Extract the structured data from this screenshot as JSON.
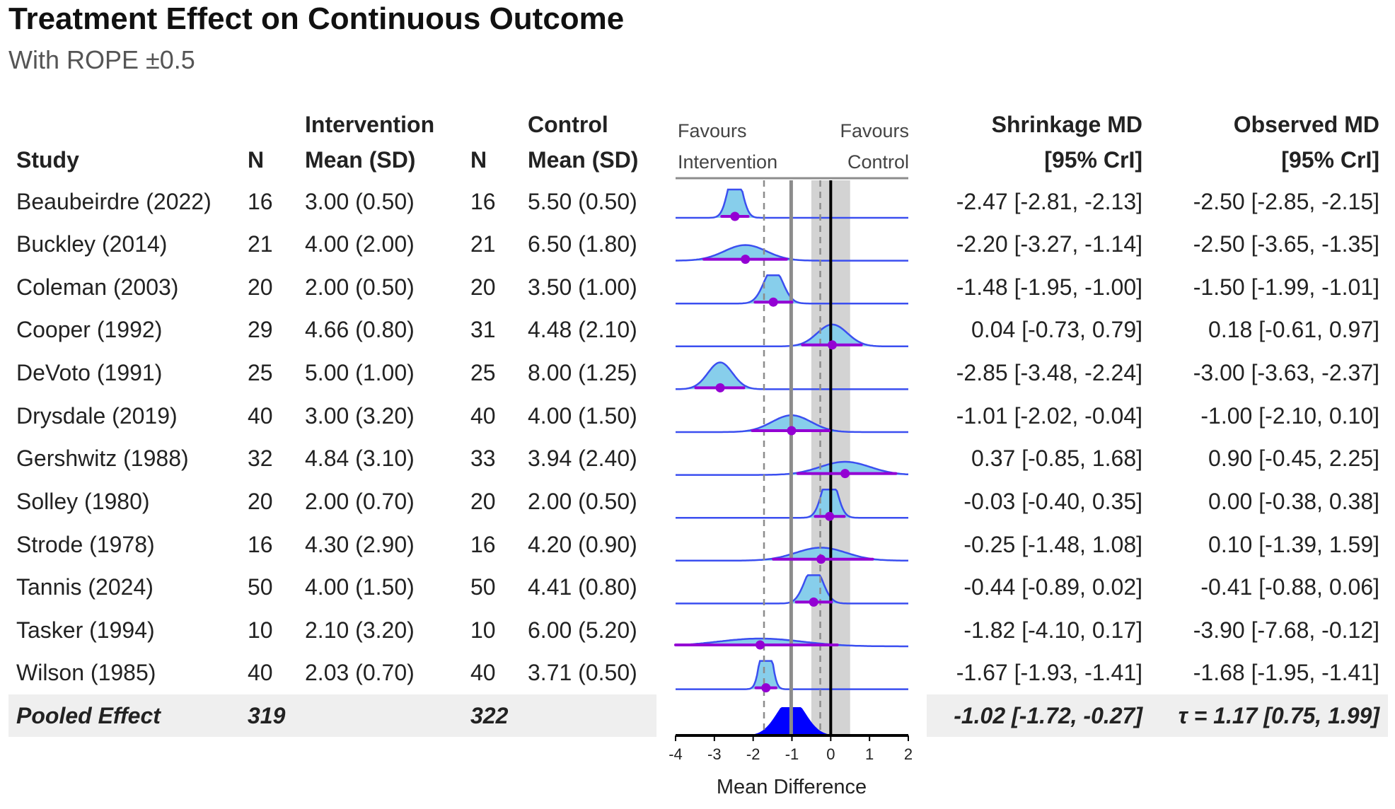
{
  "title": "Treatment Effect on Continuous Outcome",
  "subtitle": "With ROPE ±0.5",
  "headers": {
    "study": "Study",
    "n1": "N",
    "intervention_top": "Intervention",
    "intervention_mean": "Mean (SD)",
    "n2": "N",
    "control_top": "Control",
    "control_mean": "Mean (SD)",
    "favours_left_1": "Favours",
    "favours_left_2": "Intervention",
    "favours_right_1": "Favours",
    "favours_right_2": "Control",
    "shrink_top": "Shrinkage MD",
    "shrink_ci": "[95% CrI]",
    "obs_top": "Observed MD",
    "obs_ci": "[95% CrI]"
  },
  "rows": [
    {
      "study": "Beaubeirdre (2022)",
      "n1": "16",
      "int": "3.00 (0.50)",
      "n2": "16",
      "ctl": "5.50 (0.50)",
      "shrink": "-2.47 [-2.81, -2.13]",
      "obs": "-2.50 [-2.85, -2.15]"
    },
    {
      "study": "Buckley (2014)",
      "n1": "21",
      "int": "4.00 (2.00)",
      "n2": "21",
      "ctl": "6.50 (1.80)",
      "shrink": "-2.20 [-3.27, -1.14]",
      "obs": "-2.50 [-3.65, -1.35]"
    },
    {
      "study": "Coleman (2003)",
      "n1": "20",
      "int": "2.00 (0.50)",
      "n2": "20",
      "ctl": "3.50 (1.00)",
      "shrink": "-1.48 [-1.95, -1.00]",
      "obs": "-1.50 [-1.99, -1.01]"
    },
    {
      "study": "Cooper (1992)",
      "n1": "29",
      "int": "4.66 (0.80)",
      "n2": "31",
      "ctl": "4.48 (2.10)",
      "shrink": "0.04 [-0.73, 0.79]",
      "obs": "0.18 [-0.61, 0.97]"
    },
    {
      "study": "DeVoto (1991)",
      "n1": "25",
      "int": "5.00 (1.00)",
      "n2": "25",
      "ctl": "8.00 (1.25)",
      "shrink": "-2.85 [-3.48, -2.24]",
      "obs": "-3.00 [-3.63, -2.37]"
    },
    {
      "study": "Drysdale (2019)",
      "n1": "40",
      "int": "3.00 (3.20)",
      "n2": "40",
      "ctl": "4.00 (1.50)",
      "shrink": "-1.01 [-2.02, -0.04]",
      "obs": "-1.00 [-2.10, 0.10]"
    },
    {
      "study": "Gershwitz (1988)",
      "n1": "32",
      "int": "4.84 (3.10)",
      "n2": "33",
      "ctl": "3.94 (2.40)",
      "shrink": "0.37 [-0.85, 1.68]",
      "obs": "0.90 [-0.45, 2.25]"
    },
    {
      "study": "Solley (1980)",
      "n1": "20",
      "int": "2.00 (0.70)",
      "n2": "20",
      "ctl": "2.00 (0.50)",
      "shrink": "-0.03 [-0.40, 0.35]",
      "obs": "0.00 [-0.38, 0.38]"
    },
    {
      "study": "Strode (1978)",
      "n1": "16",
      "int": "4.30 (2.90)",
      "n2": "16",
      "ctl": "4.20 (0.90)",
      "shrink": "-0.25 [-1.48, 1.08]",
      "obs": "0.10 [-1.39, 1.59]"
    },
    {
      "study": "Tannis (2024)",
      "n1": "50",
      "int": "4.00 (1.50)",
      "n2": "50",
      "ctl": "4.41 (0.80)",
      "shrink": "-0.44 [-0.89, 0.02]",
      "obs": "-0.41 [-0.88, 0.06]"
    },
    {
      "study": "Tasker (1994)",
      "n1": "10",
      "int": "2.10 (3.20)",
      "n2": "10",
      "ctl": "6.00 (5.20)",
      "shrink": "-1.82 [-4.10, 0.17]",
      "obs": "-3.90 [-7.68, -0.12]"
    },
    {
      "study": "Wilson (1985)",
      "n1": "40",
      "int": "2.03 (0.70)",
      "n2": "40",
      "ctl": "3.71 (0.50)",
      "shrink": "-1.67 [-1.93, -1.41]",
      "obs": "-1.68 [-1.95, -1.41]"
    }
  ],
  "pooled": {
    "label": "Pooled Effect",
    "n1": "319",
    "n2": "322",
    "shrink": "-1.02 [-1.72, -0.27]",
    "tau": "τ = 1.17 [0.75, 1.99]"
  },
  "chart_data": {
    "type": "forest",
    "xlabel": "Mean Difference",
    "xlim": [
      -4,
      2
    ],
    "xticks": [
      -4,
      -3,
      -2,
      -1,
      0,
      1,
      2
    ],
    "rope": [
      -0.5,
      0.5
    ],
    "pooled_estimate": -1.02,
    "pooled_ci": [
      -1.72,
      -0.27
    ],
    "studies": [
      {
        "name": "Beaubeirdre (2022)",
        "est": -2.47,
        "lo": -2.81,
        "hi": -2.13
      },
      {
        "name": "Buckley (2014)",
        "est": -2.2,
        "lo": -3.27,
        "hi": -1.14
      },
      {
        "name": "Coleman (2003)",
        "est": -1.48,
        "lo": -1.95,
        "hi": -1.0
      },
      {
        "name": "Cooper (1992)",
        "est": 0.04,
        "lo": -0.73,
        "hi": 0.79
      },
      {
        "name": "DeVoto (1991)",
        "est": -2.85,
        "lo": -3.48,
        "hi": -2.24
      },
      {
        "name": "Drysdale (2019)",
        "est": -1.01,
        "lo": -2.02,
        "hi": -0.04
      },
      {
        "name": "Gershwitz (1988)",
        "est": 0.37,
        "lo": -0.85,
        "hi": 1.68
      },
      {
        "name": "Solley (1980)",
        "est": -0.03,
        "lo": -0.4,
        "hi": 0.35
      },
      {
        "name": "Strode (1978)",
        "est": -0.25,
        "lo": -1.48,
        "hi": 1.08
      },
      {
        "name": "Tannis (2024)",
        "est": -0.44,
        "lo": -0.89,
        "hi": 0.02
      },
      {
        "name": "Tasker (1994)",
        "est": -1.82,
        "lo": -4.1,
        "hi": 0.17
      },
      {
        "name": "Wilson (1985)",
        "est": -1.67,
        "lo": -1.93,
        "hi": -1.41
      }
    ],
    "colors": {
      "density_fill": "#87ceeb",
      "density_line": "#3b4ff0",
      "interval": "#9400d3",
      "pooled_fill": "#0000ff",
      "rope": "#d3d3d3",
      "pooled_line": "#8c8c8c",
      "zero_line": "#000000"
    }
  }
}
